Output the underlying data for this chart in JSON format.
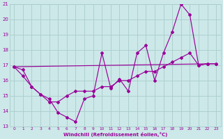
{
  "xlabel": "Windchill (Refroidissement éolien,°C)",
  "background_color": "#cce8e8",
  "grid_color": "#aacccc",
  "line_color": "#990099",
  "x_min": 0,
  "x_max": 23,
  "y_min": 13,
  "y_max": 21,
  "line1_x": [
    0,
    1,
    2,
    3,
    4,
    5,
    6,
    7,
    8,
    9,
    10,
    11,
    12,
    13,
    14,
    15,
    16,
    17,
    18,
    19,
    20,
    21,
    22,
    23
  ],
  "line1_y": [
    16.9,
    16.7,
    15.6,
    15.1,
    14.8,
    13.9,
    13.6,
    13.3,
    14.8,
    15.0,
    17.8,
    15.5,
    16.1,
    15.3,
    17.8,
    18.3,
    16.0,
    17.8,
    19.2,
    21.0,
    20.3,
    17.0,
    17.1,
    17.1
  ],
  "line2_x": [
    0,
    1,
    2,
    3,
    4,
    5,
    6,
    7,
    8,
    9,
    10,
    11,
    12,
    13,
    14,
    15,
    16,
    17,
    18,
    19,
    20,
    21,
    22,
    23
  ],
  "line2_y": [
    16.9,
    16.3,
    15.6,
    15.1,
    14.6,
    14.6,
    15.0,
    15.3,
    15.3,
    15.3,
    15.6,
    15.6,
    16.0,
    16.0,
    16.3,
    16.6,
    16.6,
    16.9,
    17.2,
    17.5,
    17.8,
    17.0,
    17.1,
    17.1
  ],
  "line3_x": [
    0,
    23
  ],
  "line3_y": [
    16.9,
    17.1
  ],
  "xticks": [
    0,
    1,
    2,
    3,
    4,
    5,
    6,
    7,
    8,
    9,
    10,
    11,
    12,
    13,
    14,
    15,
    16,
    17,
    18,
    19,
    20,
    21,
    22,
    23
  ],
  "yticks": [
    13,
    14,
    15,
    16,
    17,
    18,
    19,
    20,
    21
  ]
}
